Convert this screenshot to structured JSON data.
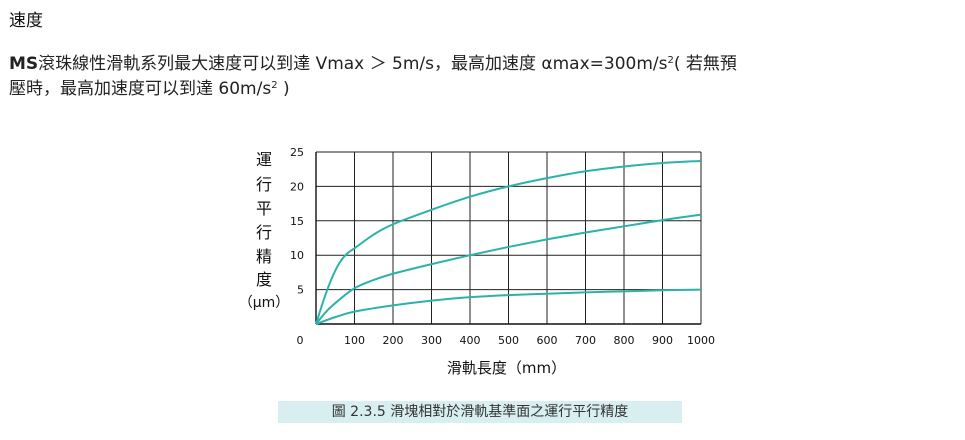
{
  "section": {
    "title": "速度"
  },
  "paragraph": {
    "line1_prefix": "MS",
    "line1_text": "滾珠線性滑軌系列最大速度可以到達 Vmax ＞ 5m/s，最高加速度 αmax=300m/s",
    "line1_sup": "2",
    "line1_suffix": "( 若無預",
    "line2_text": "壓時，最高加速度可以到達 60m/s",
    "line2_sup": "2",
    "line2_suffix": " )"
  },
  "chart_data": {
    "type": "line",
    "title": "",
    "xlabel": "滑軌長度（mm）",
    "ylabel_chars": [
      "運",
      "行",
      "平",
      "行",
      "精",
      "度",
      "（μm）"
    ],
    "xlim": [
      0,
      1000
    ],
    "ylim": [
      0,
      25
    ],
    "xticks": [
      0,
      100,
      200,
      300,
      400,
      500,
      600,
      700,
      800,
      900,
      1000
    ],
    "yticks": [
      5,
      10,
      15,
      20,
      25
    ],
    "grid": true,
    "line_color": "#2bb3a9",
    "series": [
      {
        "values": [
          [
            0,
            0
          ],
          [
            20,
            3.5
          ],
          [
            40,
            6.5
          ],
          [
            60,
            8.8
          ],
          [
            80,
            10.2
          ],
          [
            100,
            11
          ],
          [
            150,
            13
          ],
          [
            200,
            14.5
          ],
          [
            300,
            16.6
          ],
          [
            400,
            18.5
          ],
          [
            500,
            20
          ],
          [
            600,
            21.2
          ],
          [
            700,
            22.2
          ],
          [
            800,
            22.9
          ],
          [
            900,
            23.4
          ],
          [
            1000,
            23.7
          ]
        ]
      },
      {
        "values": [
          [
            0,
            0
          ],
          [
            30,
            2
          ],
          [
            60,
            3.5
          ],
          [
            100,
            5.2
          ],
          [
            150,
            6.4
          ],
          [
            200,
            7.3
          ],
          [
            300,
            8.7
          ],
          [
            400,
            10
          ],
          [
            500,
            11.2
          ],
          [
            600,
            12.3
          ],
          [
            700,
            13.3
          ],
          [
            800,
            14.2
          ],
          [
            900,
            15.1
          ],
          [
            1000,
            15.9
          ]
        ]
      },
      {
        "values": [
          [
            0,
            0
          ],
          [
            50,
            1
          ],
          [
            100,
            1.8
          ],
          [
            200,
            2.7
          ],
          [
            300,
            3.4
          ],
          [
            400,
            3.9
          ],
          [
            500,
            4.2
          ],
          [
            600,
            4.4
          ],
          [
            700,
            4.6
          ],
          [
            800,
            4.75
          ],
          [
            900,
            4.9
          ],
          [
            1000,
            5
          ]
        ]
      }
    ]
  },
  "caption": {
    "text": "圖 2.3.5  滑塊相對於滑軌基準面之運行平行精度"
  }
}
